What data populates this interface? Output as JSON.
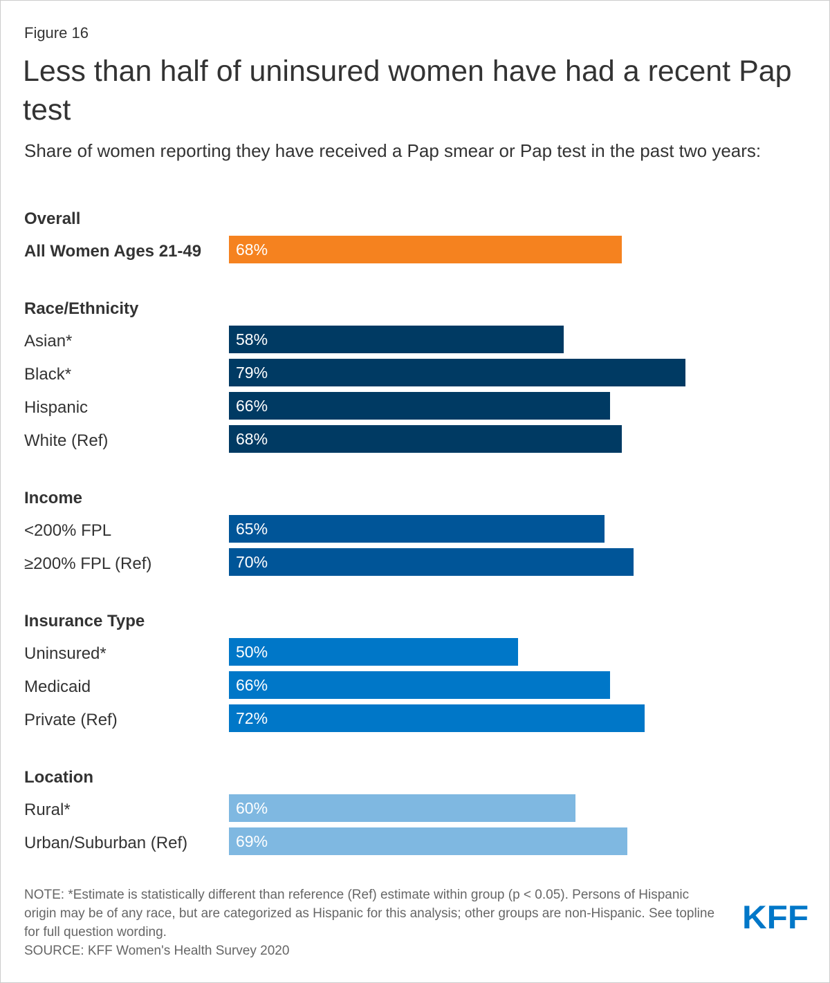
{
  "figure_label": "Figure 16",
  "title": "Less than half of uninsured women have had a recent Pap test",
  "subtitle": "Share of women reporting they have received a Pap smear or Pap test in the past two years:",
  "chart_data": {
    "type": "bar",
    "orientation": "horizontal",
    "title": "Less than half of uninsured women have had a recent Pap test",
    "subtitle": "Share of women reporting they have received a Pap smear or Pap test in the past two years:",
    "xlabel": "",
    "ylabel": "",
    "xlim": [
      0,
      100
    ],
    "grid": false,
    "unit": "%",
    "groups": [
      {
        "name": "Overall",
        "color": "#f5821f",
        "items": [
          {
            "label": "All Women Ages 21-49",
            "value": 68,
            "bold": true
          }
        ]
      },
      {
        "name": "Race/Ethnicity",
        "color": "#003a63",
        "items": [
          {
            "label": "Asian*",
            "value": 58
          },
          {
            "label": "Black*",
            "value": 79
          },
          {
            "label": "Hispanic",
            "value": 66
          },
          {
            "label": "White (Ref)",
            "value": 68
          }
        ]
      },
      {
        "name": "Income",
        "color": "#005598",
        "items": [
          {
            "label": "<200% FPL",
            "value": 65
          },
          {
            "label": "≥200% FPL (Ref)",
            "value": 70
          }
        ]
      },
      {
        "name": "Insurance Type",
        "color": "#0077c8",
        "items": [
          {
            "label": "Uninsured*",
            "value": 50
          },
          {
            "label": "Medicaid",
            "value": 66
          },
          {
            "label": "Private (Ref)",
            "value": 72
          }
        ]
      },
      {
        "name": "Location",
        "color": "#7fb8e1",
        "items": [
          {
            "label": "Rural*",
            "value": 60
          },
          {
            "label": "Urban/Suburban (Ref)",
            "value": 69
          }
        ]
      }
    ]
  },
  "footer": {
    "note": "NOTE: *Estimate is statistically different than reference (Ref) estimate within group (p < 0.05). Persons of Hispanic origin may be of any race, but are categorized as Hispanic for this analysis; other groups are non-Hispanic. See topline for full question wording.",
    "source": "SOURCE: KFF Women's Health Survey 2020"
  },
  "logo": {
    "text": "KFF",
    "color": "#0077c8"
  }
}
